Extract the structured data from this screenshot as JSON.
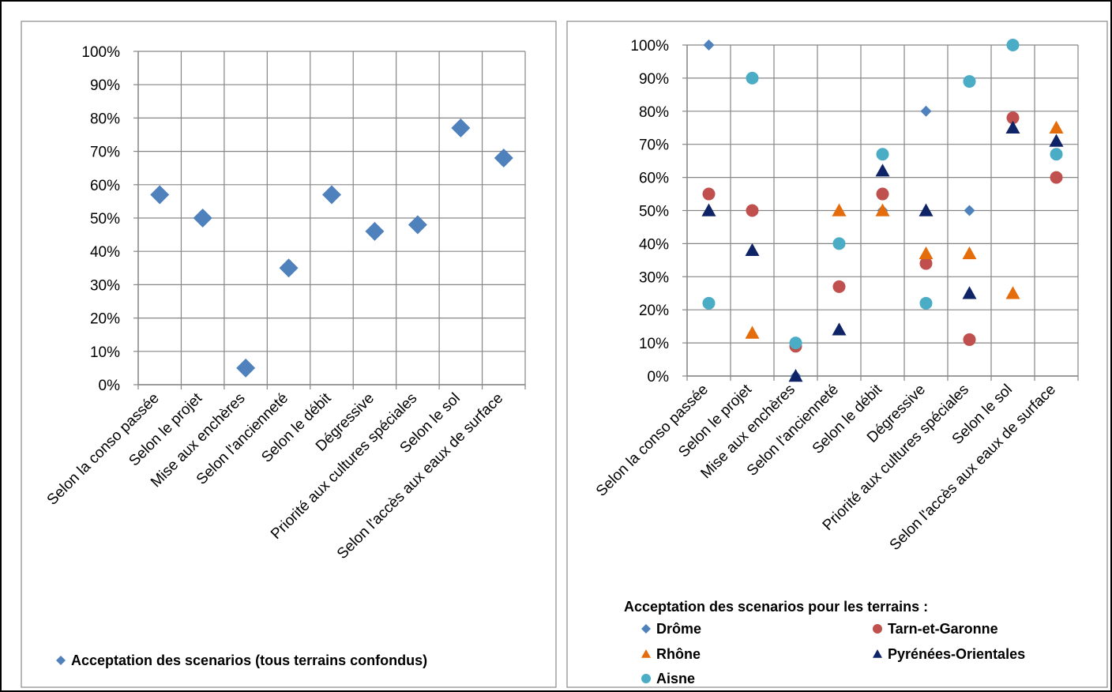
{
  "chart_data": [
    {
      "type": "scatter",
      "categories": [
        "Selon la conso passée",
        "Selon le projet",
        "Mise aux enchères",
        "Selon l'ancienneté",
        "Selon le débit",
        "Dégressive",
        "Priorité aux cultures spéciales",
        "Selon le sol",
        "Selon l'accès aux eaux de surface"
      ],
      "yticks": [
        "0%",
        "10%",
        "20%",
        "30%",
        "40%",
        "50%",
        "60%",
        "70%",
        "80%",
        "90%",
        "100%"
      ],
      "ylim": [
        0,
        100
      ],
      "grid": true,
      "legend_position": "bottom",
      "series": [
        {
          "name": "Acceptation des scenarios (tous terrains confondus)",
          "marker": "diamond",
          "color": "#4F81BD",
          "values": [
            57,
            50,
            5,
            35,
            57,
            46,
            48,
            77,
            68
          ]
        }
      ]
    },
    {
      "type": "scatter",
      "categories": [
        "Selon la conso passée",
        "Selon le projet",
        "Mise aux enchères",
        "Selon l'ancienneté",
        "Selon le débit",
        "Dégressive",
        "Priorité aux cultures spéciales",
        "Selon le sol",
        "Selon l'accès aux eaux de surface"
      ],
      "yticks": [
        "0%",
        "10%",
        "20%",
        "30%",
        "40%",
        "50%",
        "60%",
        "70%",
        "80%",
        "90%",
        "100%"
      ],
      "ylim": [
        0,
        100
      ],
      "grid": true,
      "legend_position": "bottom",
      "legend_title": "Acceptation des scenarios pour les terrains :",
      "series": [
        {
          "name": "Drôme",
          "marker": "diamond",
          "color": "#4F81BD",
          "values": [
            100,
            null,
            0,
            null,
            50,
            80,
            50,
            null,
            null
          ]
        },
        {
          "name": "Tarn-et-Garonne",
          "marker": "circle",
          "color": "#C0504D",
          "values": [
            55,
            50,
            9,
            27,
            55,
            34,
            11,
            78,
            60
          ]
        },
        {
          "name": "Rhône",
          "marker": "triangle",
          "color": "#E46C0A",
          "values": [
            null,
            13,
            null,
            50,
            50,
            37,
            37,
            25,
            75
          ]
        },
        {
          "name": "Pyrénées-Orientales",
          "marker": "triangle",
          "color": "#0F2466",
          "values": [
            50,
            38,
            0,
            14,
            62,
            50,
            25,
            75,
            71
          ]
        },
        {
          "name": "Aisne",
          "marker": "circle",
          "color": "#4BACC6",
          "values": [
            22,
            90,
            10,
            40,
            67,
            22,
            89,
            100,
            67
          ]
        }
      ]
    }
  ]
}
